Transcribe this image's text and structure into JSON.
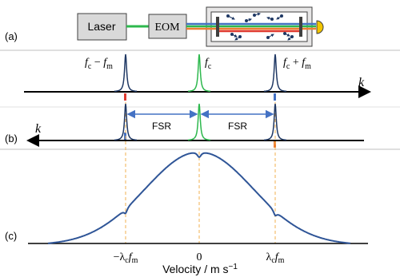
{
  "panel_a": {
    "label": "(a)",
    "laser": "Laser",
    "eom": "EOM"
  },
  "panel_b": {
    "label": "(b)",
    "peak_labels": [
      [
        "f",
        "c",
        " − ",
        "f",
        "m"
      ],
      [
        "f",
        "c"
      ],
      [
        "f",
        "c",
        " + ",
        "f",
        "m"
      ]
    ],
    "upper_axis_label": "k",
    "lower_axis_label": "k",
    "fsr_left": "FSR",
    "fsr_right": "FSR"
  },
  "panel_c": {
    "label": "(c)",
    "ticks": [
      [
        "−λ",
        "c",
        "f",
        "m"
      ],
      [
        "0"
      ],
      [
        "λ",
        "c",
        "f",
        "m"
      ]
    ],
    "axis_title": [
      "Velocity / m s",
      "−1"
    ]
  }
}
